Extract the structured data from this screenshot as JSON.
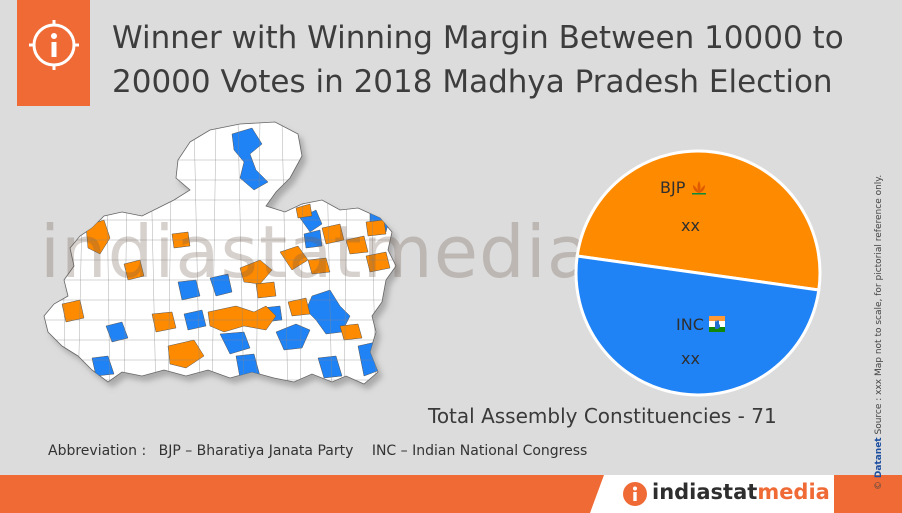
{
  "title": {
    "line1": "Winner with Winning Margin Between 10000 to",
    "line2": "20000 Votes in 2018 Madhya Pradesh Election"
  },
  "watermark": "indiastatmedia.com",
  "chart_data": {
    "type": "pie",
    "slices": [
      {
        "name": "BJP",
        "value_label": "xx",
        "color": "#fe8a00"
      },
      {
        "name": "INC",
        "value_label": "xx",
        "color": "#1f82f5"
      }
    ]
  },
  "total_label": "Total Assembly Constituencies - 71",
  "abbreviation": {
    "heading": "Abbreviation",
    "colon": ":",
    "bjp": "BJP – Bharatiya Janata Party",
    "inc": "INC – Indian National Congress"
  },
  "brand": {
    "part1": "indiastat",
    "part2": "media"
  },
  "side_note": {
    "copyright": "©",
    "datanet": "Datanet",
    "text": "Source : xxx  Map not to scale, for pictorial reference only."
  },
  "colors": {
    "bjp": "#fe8a00",
    "inc": "#1f82f5",
    "accent": "#ef6a35",
    "map_fill": "#ffffff"
  },
  "icons": [
    "info-icon",
    "bjp-lotus-icon",
    "inc-hand-icon",
    "brand-info-icon"
  ]
}
